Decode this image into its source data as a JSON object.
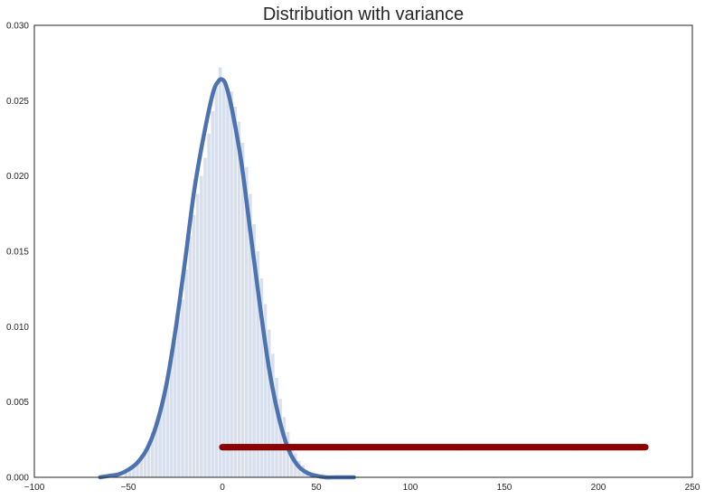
{
  "chart_data": {
    "type": "bar",
    "title": "Distribution with variance",
    "xlabel": "",
    "ylabel": "",
    "xlim": [
      -100,
      250
    ],
    "ylim": [
      0,
      0.03
    ],
    "x_ticks": [
      -100,
      -50,
      0,
      50,
      100,
      150,
      200,
      250
    ],
    "y_ticks": [
      0.0,
      0.005,
      0.01,
      0.015,
      0.02,
      0.025,
      0.03
    ],
    "x_tick_labels": [
      "−100",
      "−50",
      "0",
      "50",
      "100",
      "150",
      "200",
      "250"
    ],
    "y_tick_labels": [
      "0.000",
      "0.005",
      "0.010",
      "0.015",
      "0.020",
      "0.025",
      "0.030"
    ],
    "grid": false,
    "histogram": {
      "color": "#4c72b0",
      "opacity": 0.22,
      "bins": [
        {
          "x0": -52,
          "x1": -50,
          "value": 0.0003
        },
        {
          "x0": -50,
          "x1": -48,
          "value": 0.0005
        },
        {
          "x0": -48,
          "x1": -46,
          "value": 0.0008
        },
        {
          "x0": -46,
          "x1": -44,
          "value": 0.0011
        },
        {
          "x0": -44,
          "x1": -42,
          "value": 0.0015
        },
        {
          "x0": -42,
          "x1": -40,
          "value": 0.0019
        },
        {
          "x0": -40,
          "x1": -38,
          "value": 0.0024
        },
        {
          "x0": -38,
          "x1": -36,
          "value": 0.003
        },
        {
          "x0": -36,
          "x1": -34,
          "value": 0.0037
        },
        {
          "x0": -34,
          "x1": -32,
          "value": 0.0046
        },
        {
          "x0": -32,
          "x1": -30,
          "value": 0.0055
        },
        {
          "x0": -30,
          "x1": -28,
          "value": 0.0065
        },
        {
          "x0": -28,
          "x1": -26,
          "value": 0.0078
        },
        {
          "x0": -26,
          "x1": -24,
          "value": 0.009
        },
        {
          "x0": -24,
          "x1": -22,
          "value": 0.0106
        },
        {
          "x0": -22,
          "x1": -20,
          "value": 0.0118
        },
        {
          "x0": -20,
          "x1": -18,
          "value": 0.0138
        },
        {
          "x0": -18,
          "x1": -16,
          "value": 0.016
        },
        {
          "x0": -16,
          "x1": -14,
          "value": 0.0174
        },
        {
          "x0": -14,
          "x1": -12,
          "value": 0.0188
        },
        {
          "x0": -12,
          "x1": -10,
          "value": 0.02
        },
        {
          "x0": -10,
          "x1": -8,
          "value": 0.0212
        },
        {
          "x0": -8,
          "x1": -6,
          "value": 0.0228
        },
        {
          "x0": -6,
          "x1": -4,
          "value": 0.0243
        },
        {
          "x0": -4,
          "x1": -2,
          "value": 0.026
        },
        {
          "x0": -2,
          "x1": 0,
          "value": 0.0272
        },
        {
          "x0": 0,
          "x1": 2,
          "value": 0.0262
        },
        {
          "x0": 2,
          "x1": 4,
          "value": 0.0255
        },
        {
          "x0": 4,
          "x1": 6,
          "value": 0.0256
        },
        {
          "x0": 6,
          "x1": 8,
          "value": 0.0246
        },
        {
          "x0": 8,
          "x1": 10,
          "value": 0.0236
        },
        {
          "x0": 10,
          "x1": 12,
          "value": 0.0222
        },
        {
          "x0": 12,
          "x1": 14,
          "value": 0.0206
        },
        {
          "x0": 14,
          "x1": 16,
          "value": 0.0188
        },
        {
          "x0": 16,
          "x1": 18,
          "value": 0.0168
        },
        {
          "x0": 18,
          "x1": 20,
          "value": 0.015
        },
        {
          "x0": 20,
          "x1": 22,
          "value": 0.0132
        },
        {
          "x0": 22,
          "x1": 24,
          "value": 0.0115
        },
        {
          "x0": 24,
          "x1": 26,
          "value": 0.0098
        },
        {
          "x0": 26,
          "x1": 28,
          "value": 0.0082
        },
        {
          "x0": 28,
          "x1": 30,
          "value": 0.0066
        },
        {
          "x0": 30,
          "x1": 32,
          "value": 0.0052
        },
        {
          "x0": 32,
          "x1": 34,
          "value": 0.004
        },
        {
          "x0": 34,
          "x1": 36,
          "value": 0.003
        },
        {
          "x0": 36,
          "x1": 38,
          "value": 0.0022
        },
        {
          "x0": 38,
          "x1": 40,
          "value": 0.0016
        },
        {
          "x0": 40,
          "x1": 42,
          "value": 0.0011
        },
        {
          "x0": 42,
          "x1": 44,
          "value": 0.0008
        },
        {
          "x0": 44,
          "x1": 46,
          "value": 0.0005
        },
        {
          "x0": 46,
          "x1": 48,
          "value": 0.0003
        }
      ]
    },
    "series": [
      {
        "type": "line",
        "color": "#4c72b0",
        "x": [
          -65,
          -60,
          -55,
          -50,
          -45,
          -40,
          -35,
          -30,
          -25,
          -20,
          -15,
          -10,
          -5,
          -2,
          0,
          2,
          5,
          10,
          15,
          20,
          25,
          30,
          35,
          40,
          45,
          50,
          55,
          60,
          65,
          70
        ],
        "y": [
          0.0,
          0.0001,
          0.0002,
          0.0005,
          0.001,
          0.0019,
          0.0035,
          0.006,
          0.0097,
          0.0142,
          0.019,
          0.0226,
          0.0255,
          0.0263,
          0.0264,
          0.026,
          0.0245,
          0.021,
          0.0162,
          0.0114,
          0.0071,
          0.004,
          0.0019,
          0.0008,
          0.0003,
          0.0001,
          0.0,
          0.0,
          0.0,
          0.0
        ]
      },
      {
        "type": "points",
        "color": "#8b0000",
        "x_start": 0,
        "x_end": 225,
        "y": 0.002
      }
    ]
  }
}
